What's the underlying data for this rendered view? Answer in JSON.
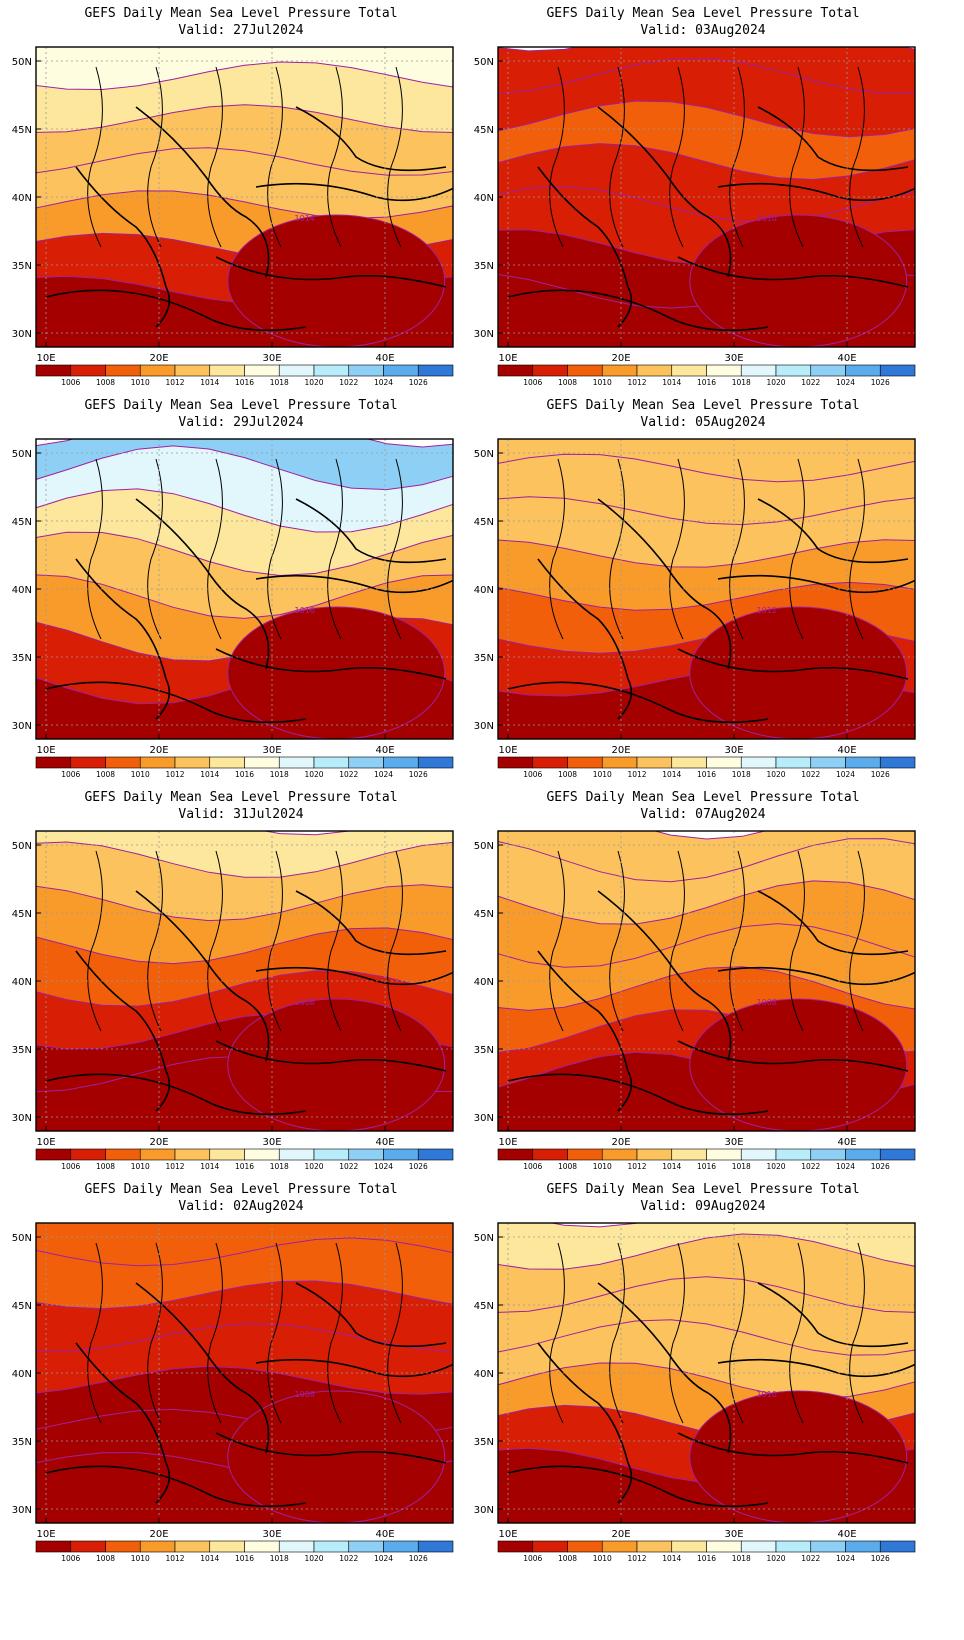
{
  "page": {
    "background": "#ffffff"
  },
  "maps": [
    {
      "title": "GEFS Daily Mean Sea Level Pressure Total",
      "valid": "Valid: 27Jul2024",
      "contour_label": "1014",
      "palette_key": "p1"
    },
    {
      "title": "GEFS Daily Mean Sea Level Pressure Total",
      "valid": "Valid: 03Aug2024",
      "contour_label": "1010",
      "palette_key": "p2"
    },
    {
      "title": "GEFS Daily Mean Sea Level Pressure Total",
      "valid": "Valid: 29Jul2024",
      "contour_label": "1016",
      "palette_key": "p3"
    },
    {
      "title": "GEFS Daily Mean Sea Level Pressure Total",
      "valid": "Valid: 05Aug2024",
      "contour_label": "1012",
      "palette_key": "p4"
    },
    {
      "title": "GEFS Daily Mean Sea Level Pressure Total",
      "valid": "Valid: 31Jul2024",
      "contour_label": "1008",
      "palette_key": "p5"
    },
    {
      "title": "GEFS Daily Mean Sea Level Pressure Total",
      "valid": "Valid: 07Aug2024",
      "contour_label": "1008",
      "palette_key": "p6"
    },
    {
      "title": "GEFS Daily Mean Sea Level Pressure Total",
      "valid": "Valid: 02Aug2024",
      "contour_label": "1008",
      "palette_key": "p7"
    },
    {
      "title": "GEFS Daily Mean Sea Level Pressure Total",
      "valid": "Valid: 09Aug2024",
      "contour_label": "1010",
      "palette_key": "p8"
    }
  ],
  "axes": {
    "lat_labels": [
      "50N",
      "45N",
      "40N",
      "35N",
      "30N"
    ],
    "lon_labels": [
      "10E",
      "20E",
      "30E",
      "40E"
    ]
  },
  "colorbar": {
    "levels": [
      "1006",
      "1008",
      "1010",
      "1012",
      "1014",
      "1016",
      "1018",
      "1020",
      "1022",
      "1024",
      "1026"
    ],
    "colors": [
      "#a50000",
      "#d81e05",
      "#f25f0a",
      "#f99b2b",
      "#fbc25e",
      "#fde79c",
      "#fffde0",
      "#e1f7fb",
      "#b7ecfb",
      "#8ed0f5",
      "#5aacec",
      "#2f78d8"
    ]
  },
  "contour_color": "#a020a0",
  "coastline_color": "#000000"
}
